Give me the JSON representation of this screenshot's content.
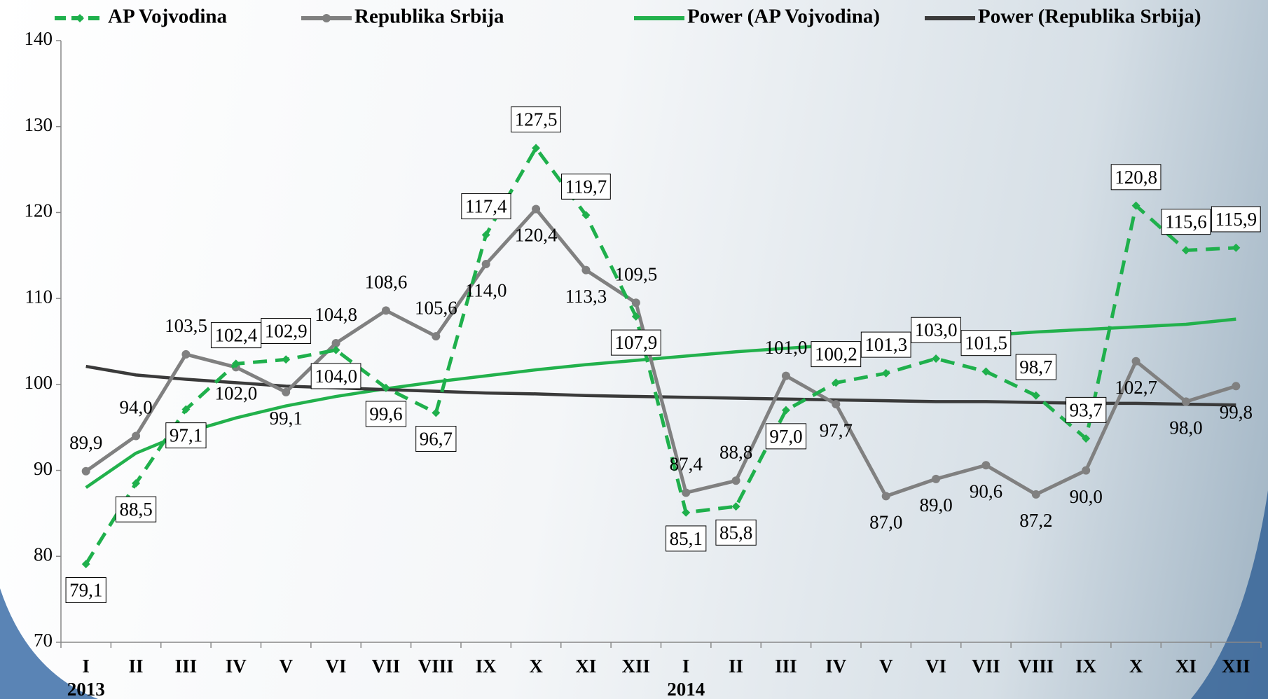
{
  "chart_data": {
    "type": "line",
    "categories": [
      "I",
      "II",
      "III",
      "IV",
      "V",
      "VI",
      "VII",
      "VIII",
      "IX",
      "X",
      "XI",
      "XII",
      "I",
      "II",
      "III",
      "IV",
      "V",
      "VI",
      "VII",
      "VIII",
      "IX",
      "X",
      "XI",
      "XII"
    ],
    "years": [
      "2013",
      "2014"
    ],
    "ylim": [
      70,
      140
    ],
    "yticks": [
      70,
      80,
      90,
      100,
      110,
      120,
      130,
      140
    ],
    "grid": false,
    "legend": "top",
    "series": [
      {
        "name": "AP Vojvodina",
        "color": "#1fb04c",
        "style": "dashed",
        "marker": "diamond",
        "boxed_labels": true,
        "values": [
          79.1,
          88.5,
          97.1,
          102.4,
          102.9,
          104.0,
          99.6,
          96.7,
          117.4,
          127.5,
          119.7,
          107.9,
          85.1,
          85.8,
          97.0,
          100.2,
          101.3,
          103.0,
          101.5,
          98.7,
          93.7,
          120.8,
          115.6,
          115.9
        ],
        "value_labels": [
          "79,1",
          "88,5",
          "97,1",
          "102,4",
          "102,9",
          "104,0",
          "99,6",
          "96,7",
          "117,4",
          "127,5",
          "119,7",
          "107,9",
          "85,1",
          "85,8",
          "97,0",
          "100,2",
          "101,3",
          "103,0",
          "101,5",
          "98,7",
          "93,7",
          "120,8",
          "115,6",
          "115,9"
        ]
      },
      {
        "name": "Republika Srbija",
        "color": "#808080",
        "style": "solid",
        "marker": "circle",
        "boxed_labels": false,
        "values": [
          89.9,
          94.0,
          103.5,
          102.0,
          99.1,
          104.8,
          108.6,
          105.6,
          114.0,
          120.4,
          113.3,
          109.5,
          87.4,
          88.8,
          101.0,
          97.7,
          87.0,
          89.0,
          90.6,
          87.2,
          90.0,
          102.7,
          98.0,
          99.8
        ],
        "value_labels": [
          "89,9",
          "94,0",
          "103,5",
          "102,0",
          "99,1",
          "104,8",
          "108,6",
          "105,6",
          "114,0",
          "120,4",
          "113,3",
          "109,5",
          "87,4",
          "88,8",
          "101,0",
          "97,7",
          "87,0",
          "89,0",
          "90,6",
          "87,2",
          "90,0",
          "102,7",
          "98,0",
          "99,8"
        ]
      },
      {
        "name": "Power (AP Vojvodina)",
        "color": "#22b14c",
        "style": "solid",
        "marker": "none",
        "values": [
          88.0,
          92.0,
          94.4,
          96.1,
          97.5,
          98.6,
          99.5,
          100.3,
          101.0,
          101.7,
          102.3,
          102.8,
          103.3,
          103.8,
          104.2,
          104.6,
          105.0,
          105.4,
          105.7,
          106.1,
          106.4,
          106.7,
          107.0,
          107.6
        ]
      },
      {
        "name": "Power (Republika Srbija)",
        "color": "#3a3a3a",
        "style": "solid",
        "marker": "none",
        "values": [
          102.1,
          101.1,
          100.6,
          100.2,
          99.8,
          99.6,
          99.4,
          99.2,
          99.0,
          98.9,
          98.7,
          98.6,
          98.5,
          98.4,
          98.3,
          98.2,
          98.1,
          98.0,
          98.0,
          97.9,
          97.8,
          97.8,
          97.7,
          97.6
        ]
      }
    ]
  }
}
